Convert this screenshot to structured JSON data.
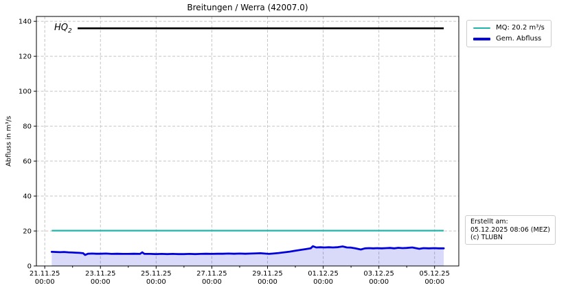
{
  "annotations": {
    "hq2_base": "HQ",
    "hq2_sub": "2"
  },
  "legend": {
    "items": [
      {
        "label": "MQ: 20.2 m³/s",
        "color": "#1fb2a9",
        "thickness": 2
      },
      {
        "label": "Gem. Abfluss",
        "color": "#0000dd",
        "thickness": 4
      }
    ]
  },
  "info_box": {
    "lines": [
      "Erstellt am:",
      "05.12.2025 08:06 (MEZ)",
      "(c) TLUBN"
    ]
  },
  "chart_data": {
    "type": "line",
    "title": "Breitungen / Werra (42007.0)",
    "ylabel": "Abfluss in m³/s",
    "ylim": [
      0,
      142.8
    ],
    "y_ticks": [
      0,
      20,
      40,
      60,
      80,
      100,
      120,
      140
    ],
    "x_unit": "days since 21.11.2025 00:00",
    "xlim": [
      -0.3,
      14.87
    ],
    "x_major_ticks": [
      0,
      2,
      4,
      6,
      8,
      10,
      12,
      14
    ],
    "x_minor_ticks": [
      1,
      3,
      5,
      7,
      9,
      11,
      13
    ],
    "x_tick_labels": [
      {
        "date": "21.11.25",
        "time": "00:00"
      },
      {
        "date": "23.11.25",
        "time": "00:00"
      },
      {
        "date": "25.11.25",
        "time": "00:00"
      },
      {
        "date": "27.11.25",
        "time": "00:00"
      },
      {
        "date": "29.11.25",
        "time": "00:00"
      },
      {
        "date": "01.12.25",
        "time": "00:00"
      },
      {
        "date": "03.12.25",
        "time": "00:00"
      },
      {
        "date": "05.12.25",
        "time": "00:00"
      }
    ],
    "grid": true,
    "legend_position": "outside upper right",
    "series": [
      {
        "name": "HQ2",
        "type": "hline",
        "value": 136,
        "x_start": 1.18,
        "x_end": 14.33,
        "color": "#000000",
        "line_width": 2.6
      },
      {
        "name": "MQ: 20.2 m³/s",
        "type": "hline",
        "value": 20.2,
        "x_start": 0.25,
        "x_end": 14.33,
        "color": "#1fb2a9",
        "line_width": 2.2
      },
      {
        "name": "Gem. Abfluss",
        "type": "line",
        "color": "#0000dd",
        "line_width": 2.8,
        "fill_color": "rgba(0,0,220,0.15)",
        "points": [
          [
            0.25,
            8.1
          ],
          [
            0.4,
            8.0
          ],
          [
            0.55,
            7.9
          ],
          [
            0.7,
            8.0
          ],
          [
            0.85,
            7.8
          ],
          [
            1.0,
            7.7
          ],
          [
            1.1,
            7.6
          ],
          [
            1.25,
            7.5
          ],
          [
            1.38,
            7.3
          ],
          [
            1.45,
            6.3
          ],
          [
            1.55,
            7.0
          ],
          [
            1.7,
            7.1
          ],
          [
            1.85,
            7.0
          ],
          [
            2.0,
            7.0
          ],
          [
            2.2,
            7.1
          ],
          [
            2.4,
            6.9
          ],
          [
            2.6,
            7.0
          ],
          [
            2.8,
            6.9
          ],
          [
            3.0,
            6.9
          ],
          [
            3.2,
            7.0
          ],
          [
            3.42,
            6.9
          ],
          [
            3.5,
            7.8
          ],
          [
            3.58,
            6.9
          ],
          [
            3.8,
            6.9
          ],
          [
            4.0,
            6.8
          ],
          [
            4.2,
            6.9
          ],
          [
            4.4,
            6.8
          ],
          [
            4.6,
            6.9
          ],
          [
            4.8,
            6.8
          ],
          [
            5.0,
            6.8
          ],
          [
            5.2,
            6.9
          ],
          [
            5.4,
            6.8
          ],
          [
            5.6,
            6.9
          ],
          [
            5.8,
            7.0
          ],
          [
            6.0,
            6.9
          ],
          [
            6.2,
            7.0
          ],
          [
            6.4,
            7.0
          ],
          [
            6.6,
            7.1
          ],
          [
            6.8,
            7.0
          ],
          [
            7.0,
            7.1
          ],
          [
            7.2,
            7.0
          ],
          [
            7.4,
            7.1
          ],
          [
            7.6,
            7.2
          ],
          [
            7.75,
            7.3
          ],
          [
            7.9,
            7.1
          ],
          [
            8.05,
            6.9
          ],
          [
            8.2,
            7.1
          ],
          [
            8.4,
            7.4
          ],
          [
            8.6,
            7.8
          ],
          [
            8.8,
            8.2
          ],
          [
            9.0,
            8.7
          ],
          [
            9.2,
            9.2
          ],
          [
            9.4,
            9.7
          ],
          [
            9.55,
            10.1
          ],
          [
            9.63,
            11.3
          ],
          [
            9.75,
            10.6
          ],
          [
            9.9,
            10.7
          ],
          [
            10.05,
            10.6
          ],
          [
            10.2,
            10.7
          ],
          [
            10.35,
            10.6
          ],
          [
            10.5,
            10.7
          ],
          [
            10.7,
            11.2
          ],
          [
            10.85,
            10.6
          ],
          [
            11.0,
            10.5
          ],
          [
            11.15,
            10.1
          ],
          [
            11.35,
            9.4
          ],
          [
            11.5,
            10.1
          ],
          [
            11.65,
            10.2
          ],
          [
            11.8,
            10.1
          ],
          [
            11.95,
            10.2
          ],
          [
            12.1,
            10.1
          ],
          [
            12.25,
            10.2
          ],
          [
            12.4,
            10.3
          ],
          [
            12.55,
            10.1
          ],
          [
            12.7,
            10.4
          ],
          [
            12.85,
            10.2
          ],
          [
            13.0,
            10.3
          ],
          [
            13.2,
            10.6
          ],
          [
            13.45,
            9.8
          ],
          [
            13.6,
            10.2
          ],
          [
            13.8,
            10.1
          ],
          [
            14.0,
            10.2
          ],
          [
            14.15,
            10.1
          ],
          [
            14.33,
            10.1
          ]
        ]
      }
    ]
  }
}
